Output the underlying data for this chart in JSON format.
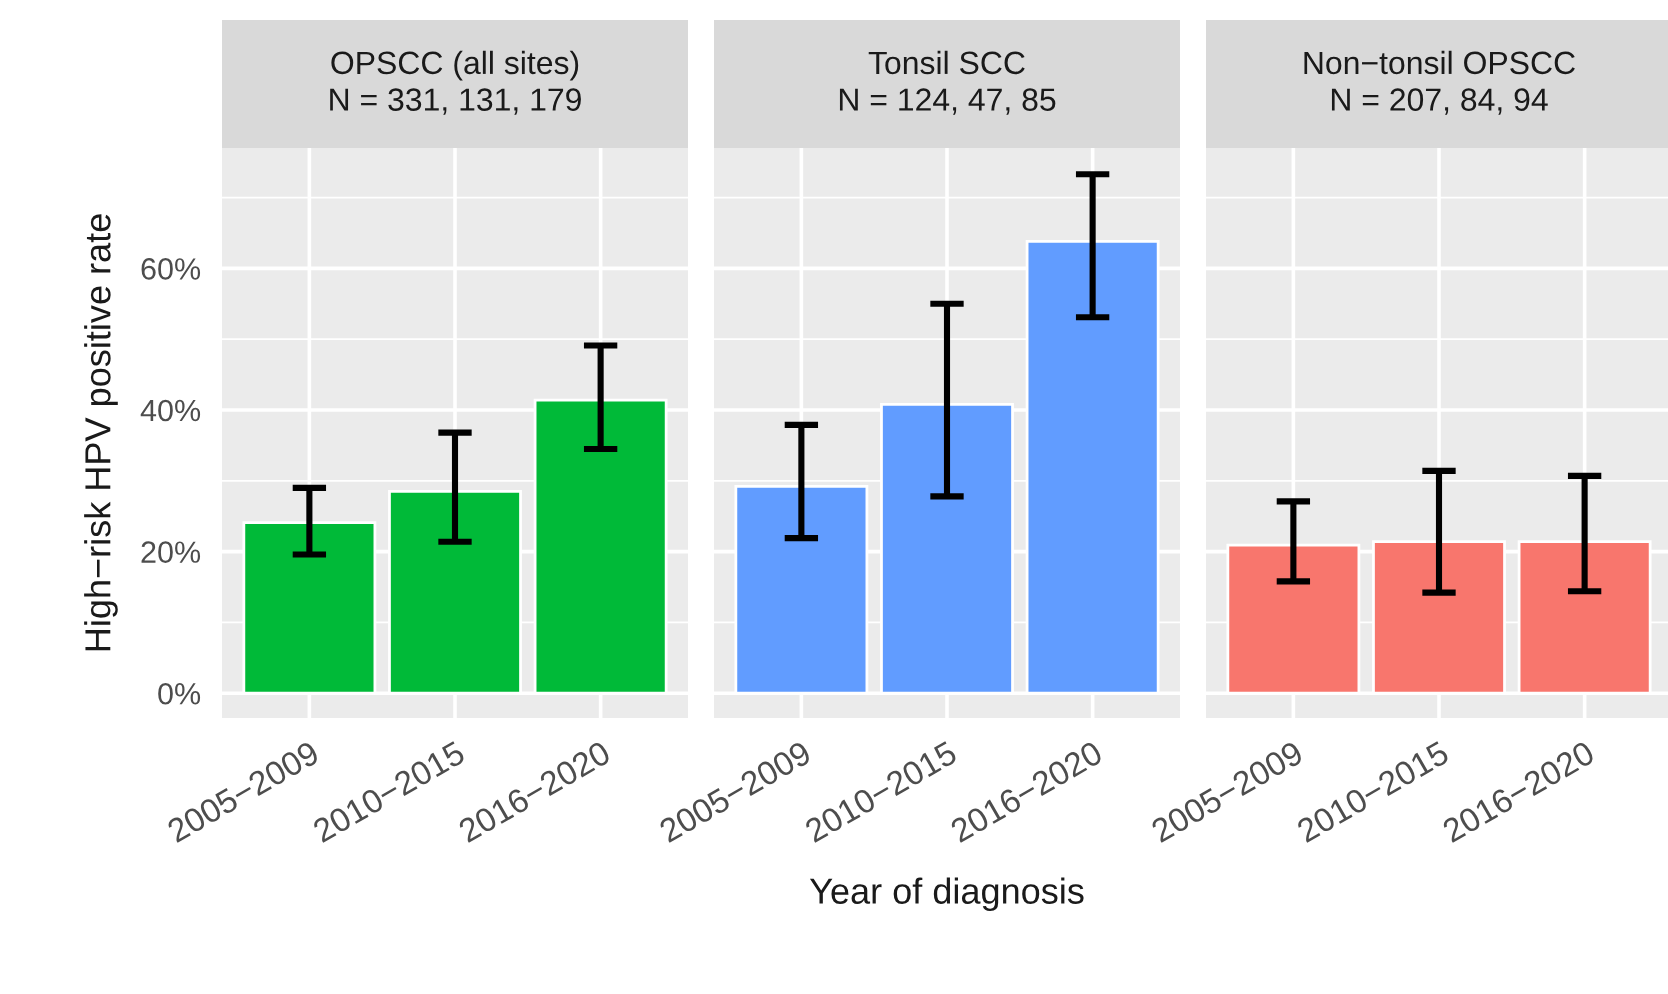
{
  "chart_data": [
    {
      "type": "bar",
      "title": "OPSCC (all sites)\nN = 331, 131, 179",
      "ylabel": "High−risk HPV positive rate",
      "categories": [
        "2005−2009",
        "2010−2015",
        "2016−2020"
      ],
      "values": [
        24.1,
        28.5,
        41.4
      ],
      "errors": [
        [
          19.6,
          29.0
        ],
        [
          21.4,
          36.8
        ],
        [
          34.5,
          49.1
        ]
      ],
      "colors": [
        "#00ba38",
        "#00ba38",
        "#00ba38"
      ],
      "ylim": [
        -3.5,
        77
      ],
      "yticks": [
        {
          "value": 0,
          "label": "0%"
        },
        {
          "value": 20,
          "label": "20%"
        },
        {
          "value": 40,
          "label": "40%"
        },
        {
          "value": 60,
          "label": "60%"
        }
      ],
      "grid": true,
      "legend": false
    },
    {
      "type": "bar",
      "title": "Tonsil SCC\nN = 124, 47, 85",
      "xlabel": "Year of diagnosis",
      "categories": [
        "2005−2009",
        "2010−2015",
        "2016−2020"
      ],
      "values": [
        29.2,
        40.8,
        63.8
      ],
      "errors": [
        [
          21.9,
          37.9
        ],
        [
          27.8,
          55.0
        ],
        [
          53.1,
          73.3
        ]
      ],
      "colors": [
        "#619cff",
        "#619cff",
        "#619cff"
      ],
      "ylim": [
        -3.5,
        77
      ],
      "yticks": [
        0,
        20,
        40,
        60
      ],
      "tick_labels": "x",
      "grid": true,
      "legend": false
    },
    {
      "type": "bar",
      "title": "Non−tonsil OPSCC\nN = 207, 84, 94",
      "categories": [
        "2005−2009",
        "2010−2015",
        "2016−2020"
      ],
      "values": [
        20.9,
        21.4,
        21.4
      ],
      "errors": [
        [
          15.8,
          27.1
        ],
        [
          14.2,
          31.4
        ],
        [
          14.4,
          30.7
        ]
      ],
      "colors": [
        "#f8766d",
        "#f8766d",
        "#f8766d"
      ],
      "ylim": [
        -3.5,
        77
      ],
      "yticks": [
        0,
        20,
        40,
        60
      ],
      "tick_labels": "x",
      "grid": true,
      "legend": false
    }
  ]
}
